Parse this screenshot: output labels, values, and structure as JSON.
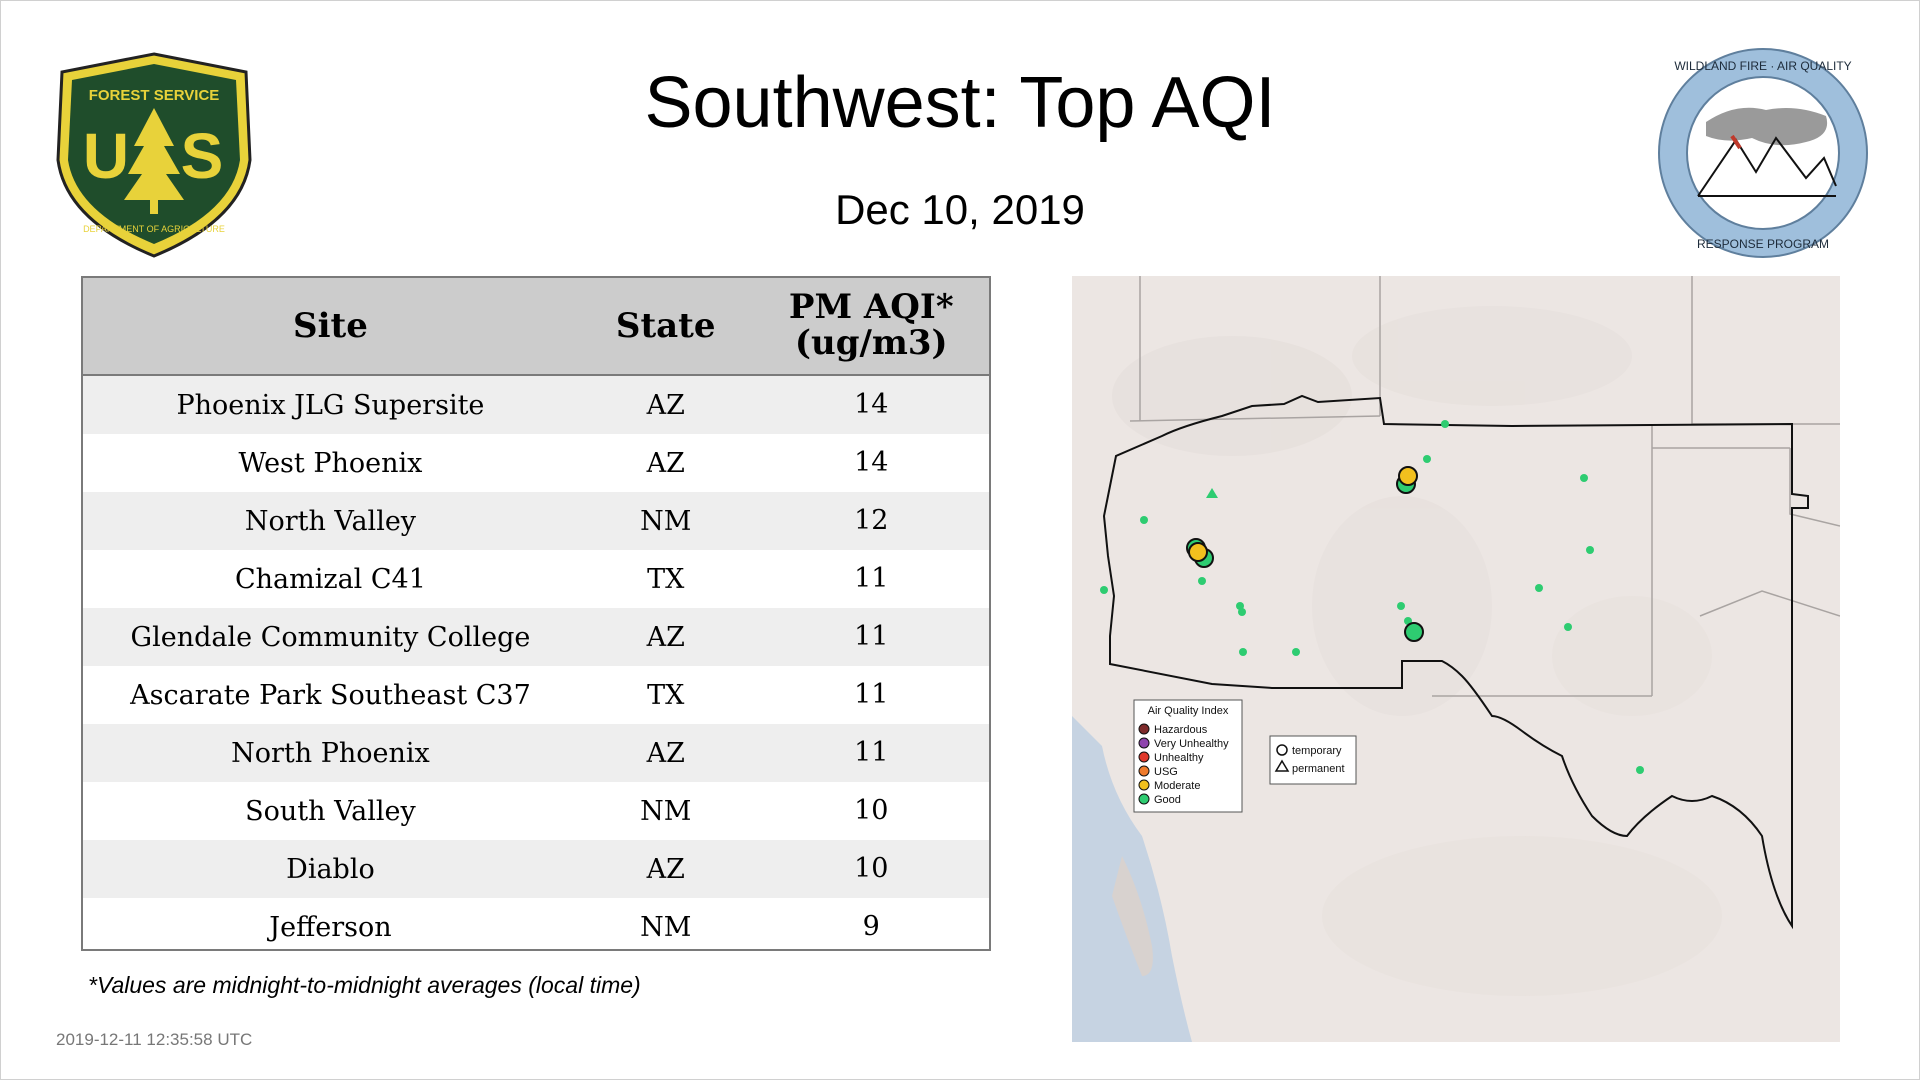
{
  "title": "Southwest: Top AQI",
  "date": "Dec 10, 2019",
  "logos": {
    "left": {
      "icon": "usfs-shield-icon",
      "text_top": "FOREST SERVICE",
      "letters": "U S",
      "text_bottom": "DEPARTMENT OF AGRICULTURE"
    },
    "right": {
      "icon": "wfaqrp-seal-icon",
      "text_top": "WILDLAND FIRE · AIR QUALITY",
      "text_bottom": "RESPONSE PROGRAM"
    }
  },
  "table": {
    "headers": {
      "site": "Site",
      "state": "State",
      "aqi_line1": "PM AQI*",
      "aqi_line2": "(ug/m3)"
    },
    "rows": [
      {
        "site": "Phoenix JLG Supersite",
        "state": "AZ",
        "aqi": "14"
      },
      {
        "site": "West Phoenix",
        "state": "AZ",
        "aqi": "14"
      },
      {
        "site": "North Valley",
        "state": "NM",
        "aqi": "12"
      },
      {
        "site": "Chamizal C41",
        "state": "TX",
        "aqi": "11"
      },
      {
        "site": "Glendale Community College",
        "state": "AZ",
        "aqi": "11"
      },
      {
        "site": "Ascarate Park Southeast C37",
        "state": "TX",
        "aqi": "11"
      },
      {
        "site": "North Phoenix",
        "state": "AZ",
        "aqi": "11"
      },
      {
        "site": "South Valley",
        "state": "NM",
        "aqi": "10"
      },
      {
        "site": "Diablo",
        "state": "AZ",
        "aqi": "10"
      },
      {
        "site": "Jefferson",
        "state": "NM",
        "aqi": "9"
      }
    ]
  },
  "footnote": "*Values are midnight-to-midnight averages (local time)",
  "timestamp": "2019-12-11 12:35:58 UTC",
  "map": {
    "legend": {
      "title": "Air Quality Index",
      "items": [
        {
          "label": "Hazardous",
          "color": "#7e2b2b"
        },
        {
          "label": "Very Unhealthy",
          "color": "#8e44ad"
        },
        {
          "label": "Unhealthy",
          "color": "#e0382b"
        },
        {
          "label": "USG",
          "color": "#ee7a2b"
        },
        {
          "label": "Moderate",
          "color": "#f2c01e"
        },
        {
          "label": "Good",
          "color": "#2ecc71"
        }
      ],
      "shapes": [
        {
          "label": "temporary",
          "icon": "circle-outline-icon"
        },
        {
          "label": "permanent",
          "icon": "triangle-outline-icon"
        }
      ]
    },
    "colors": {
      "land": "#ece6e3",
      "water": "#c6d3e2",
      "border": "#111111",
      "good": "#2ecc71",
      "moderate": "#f2c01e"
    }
  }
}
